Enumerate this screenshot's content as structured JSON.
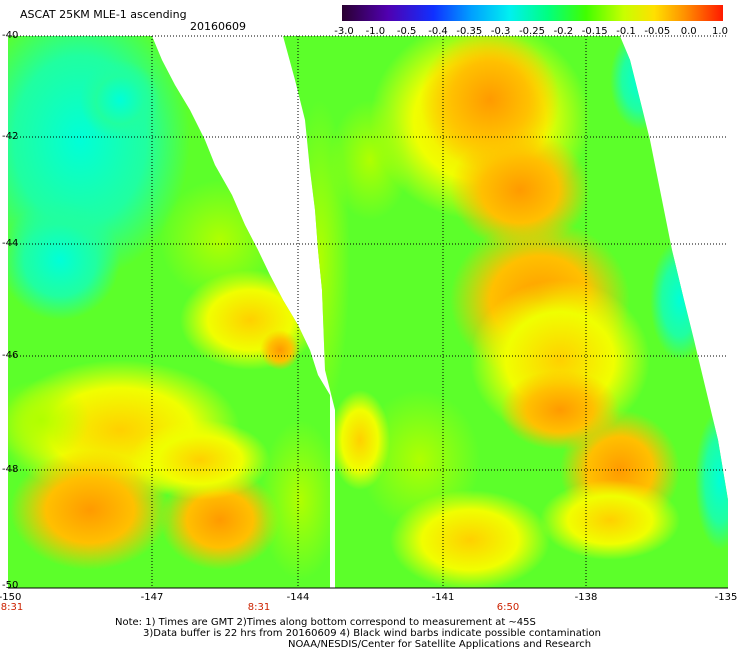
{
  "header": {
    "title": "ASCAT 25KM MLE-1 ascending",
    "date": "20160609"
  },
  "colorbar": {
    "ticks": [
      "-3.0",
      "-1.0",
      "-0.5",
      "-0.4",
      "-0.35",
      "-0.3",
      "-0.25",
      "-0.2",
      "-0.15",
      "-0.1",
      "-0.05",
      "0.0",
      "1.0"
    ],
    "colors": [
      "#3a0050",
      "#5a00c8",
      "#1a28ff",
      "#0090ff",
      "#00e0f0",
      "#00ff90",
      "#40ff00",
      "#a0ff00",
      "#f0ff00",
      "#ffc000",
      "#ff8000",
      "#ff2000"
    ]
  },
  "axes": {
    "lat_labels": [
      "-40",
      "-42",
      "-44",
      "-46",
      "-48",
      "-50"
    ],
    "lon_labels": [
      "-150",
      "-147",
      "-144",
      "-141",
      "-138",
      "-135"
    ]
  },
  "time_labels": [
    "8:31",
    "8:31",
    "6:50"
  ],
  "notes": {
    "line1": "Note: 1) Times are GMT 2)Times along bottom correspond to measurement at ~45S",
    "line2": "3)Data buffer is 22 hrs from 20160609 4) Black wind barbs indicate possible contamination",
    "line3": "NOAA/NESDIS/Center for Satellite Applications and Research"
  }
}
